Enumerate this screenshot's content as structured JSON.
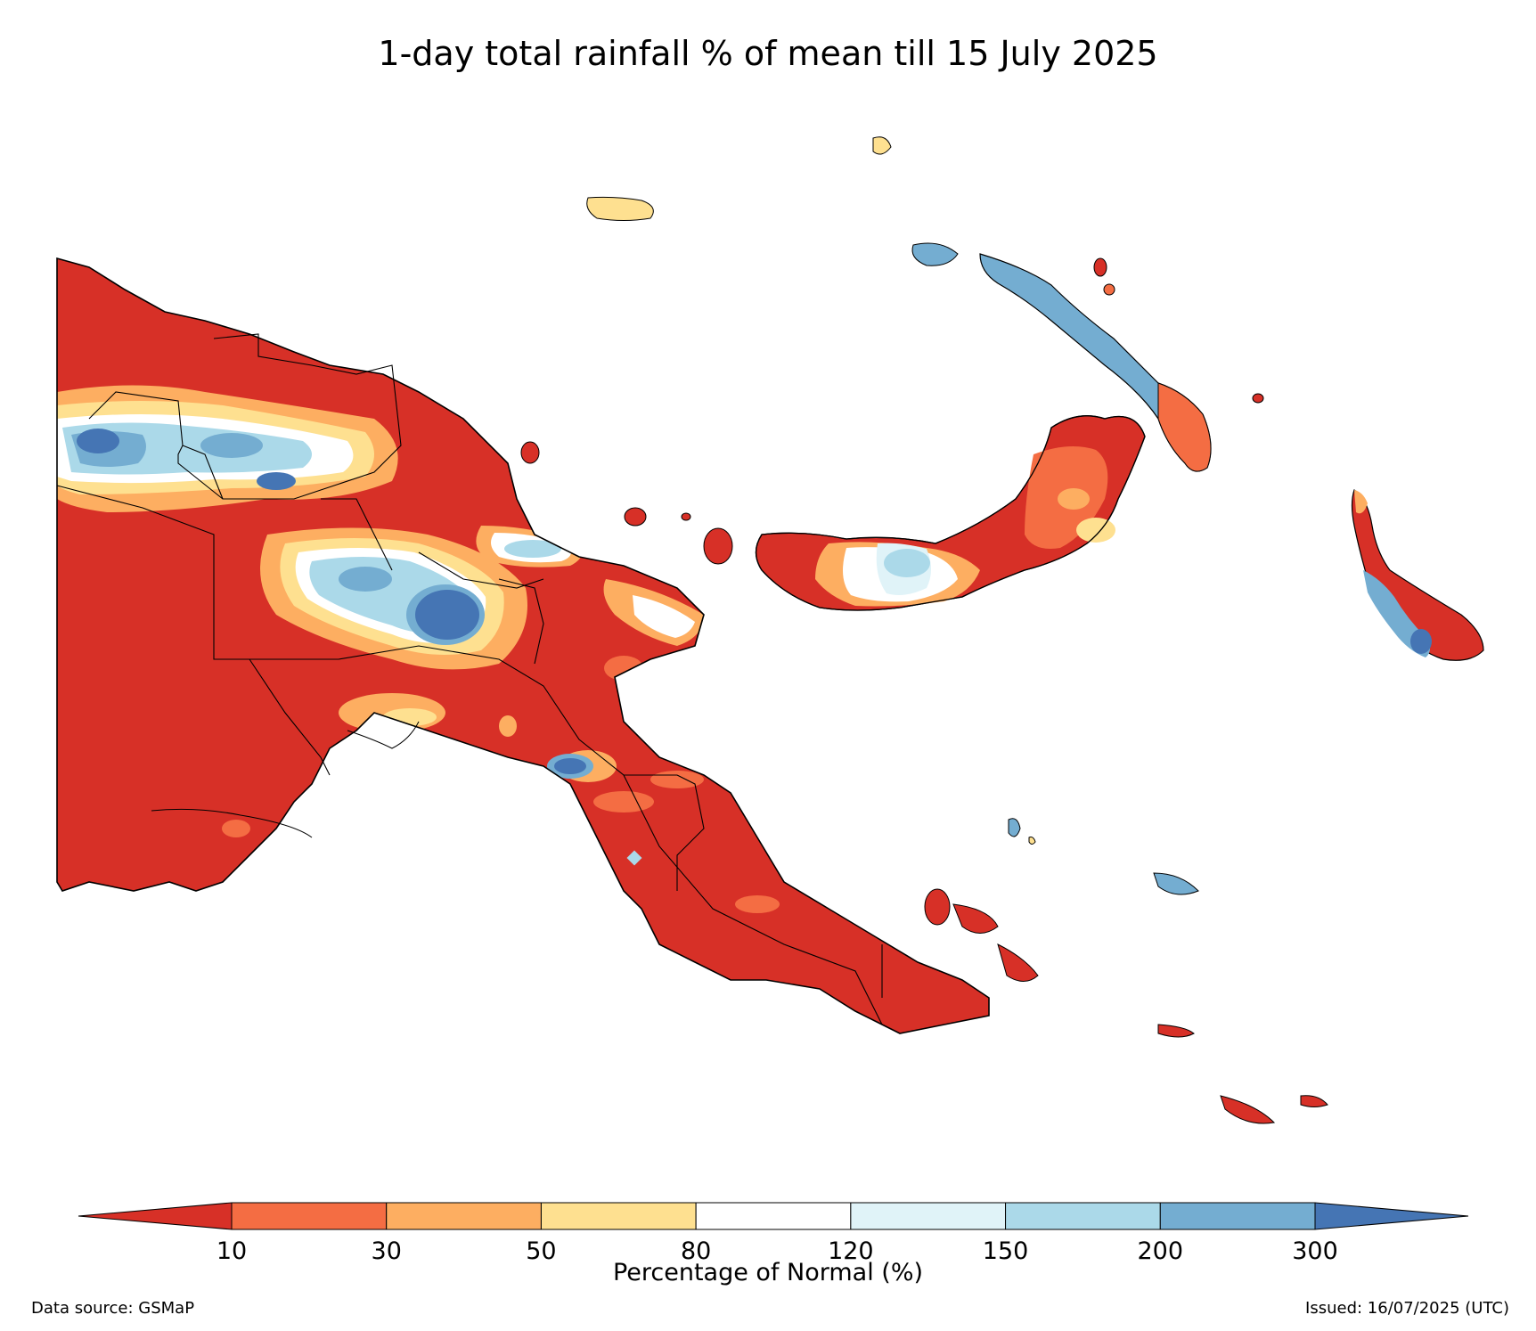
{
  "title": "1-day total rainfall % of mean till 15 July 2025",
  "colorbar": {
    "label": "Percentage of Normal (%)",
    "ticks": [
      "10",
      "30",
      "50",
      "80",
      "120",
      "150",
      "200",
      "300"
    ],
    "bins": [
      {
        "range": "<10",
        "color": "#d73027"
      },
      {
        "range": "10-30",
        "color": "#f46d43"
      },
      {
        "range": "30-50",
        "color": "#fdae61"
      },
      {
        "range": "50-80",
        "color": "#fee090"
      },
      {
        "range": "80-120",
        "color": "#ffffff"
      },
      {
        "range": "120-150",
        "color": "#e0f3f8"
      },
      {
        "range": "150-200",
        "color": "#abd9e9"
      },
      {
        "range": "200-300",
        "color": "#74add1"
      },
      {
        "range": ">300",
        "color": "#4575b4"
      }
    ]
  },
  "footer": {
    "source": "Data source: GSMaP",
    "issued": "Issued: 16/07/2025 (UTC)"
  },
  "map": {
    "region": "Papua New Guinea",
    "dominant_category": "<10",
    "wet_areas": [
      "western highlands",
      "central highlands",
      "southern highlands",
      "new britain central",
      "bougainville west"
    ]
  }
}
